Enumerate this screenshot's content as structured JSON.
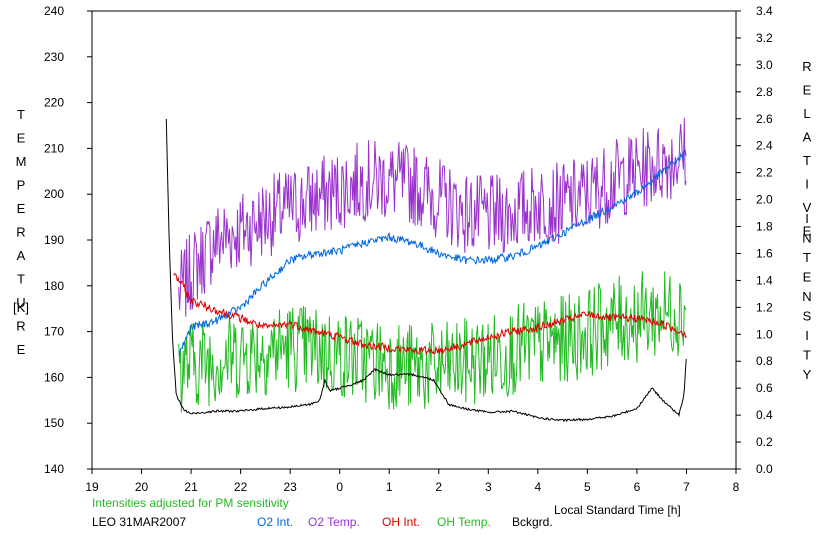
{
  "chart_data": {
    "type": "line",
    "xlabel": "Local Standard Time [h]",
    "ylabel_left": "TEMPERATURE",
    "ylabel_left_unit": "[K]",
    "ylabel_right": "RELATIVE INTENSITY",
    "x_ticks": [
      "19",
      "20",
      "21",
      "22",
      "23",
      "0",
      "1",
      "2",
      "3",
      "4",
      "5",
      "6",
      "7",
      "8"
    ],
    "x_range": [
      19,
      32
    ],
    "y_left_ticks": [
      "140",
      "150",
      "160",
      "170",
      "180",
      "190",
      "200",
      "210",
      "220",
      "230",
      "240"
    ],
    "y_left_range": [
      140,
      240
    ],
    "y_right_ticks": [
      "0.0",
      "0.2",
      "0.4",
      "0.6",
      "0.8",
      "1.0",
      "1.2",
      "1.4",
      "1.6",
      "1.8",
      "2.0",
      "2.2",
      "2.4",
      "2.6",
      "2.8",
      "3.0",
      "3.2",
      "3.4"
    ],
    "y_right_range": [
      0,
      3.4
    ],
    "grid": false,
    "note": "Intensities adjusted for PM sensitivity",
    "station_date": "LEO 31MAR2007",
    "legend": [
      {
        "label": "O2 Int.",
        "color": "#0066dd"
      },
      {
        "label": "O2 Temp.",
        "color": "#9933cc"
      },
      {
        "label": "OH Int.",
        "color": "#dd0000"
      },
      {
        "label": "OH Temp.",
        "color": "#22bb22"
      },
      {
        "label": "Bckgrd.",
        "color": "#000000"
      }
    ],
    "series": [
      {
        "key": "o2_temp",
        "axis": "left",
        "color": "#9933cc",
        "noise": 9,
        "x": [
          20.75,
          21.0,
          21.5,
          22.0,
          22.5,
          23.0,
          23.5,
          24.0,
          24.5,
          25.0,
          25.5,
          26.0,
          26.5,
          27.0,
          27.5,
          28.0,
          28.5,
          29.0,
          29.5,
          30.0,
          30.5,
          31.0
        ],
        "values": [
          178,
          183,
          190,
          192,
          195,
          197,
          199,
          201,
          203,
          203,
          202,
          199,
          196,
          195,
          196,
          198,
          198,
          200,
          203,
          205,
          207,
          209
        ]
      },
      {
        "key": "oh_temp",
        "axis": "left",
        "color": "#22bb22",
        "noise": 10,
        "x": [
          20.75,
          21.0,
          21.5,
          22.0,
          22.5,
          23.0,
          23.5,
          24.0,
          24.5,
          25.0,
          25.5,
          26.0,
          26.5,
          27.0,
          27.5,
          28.0,
          28.5,
          29.0,
          29.5,
          30.0,
          30.5,
          31.0
        ],
        "values": [
          162,
          163,
          164,
          165,
          166,
          167,
          166,
          165,
          164,
          163,
          162,
          162,
          163,
          164,
          166,
          167,
          168,
          170,
          172,
          173,
          174,
          175
        ]
      },
      {
        "key": "o2_int",
        "axis": "right",
        "color": "#0066dd",
        "noise": 0.03,
        "x": [
          20.75,
          21.0,
          21.5,
          22.0,
          22.5,
          23.0,
          23.5,
          24.0,
          24.5,
          25.0,
          25.5,
          26.0,
          26.5,
          27.0,
          27.5,
          28.0,
          28.5,
          29.0,
          29.5,
          30.0,
          30.5,
          31.0
        ],
        "values": [
          0.85,
          1.05,
          1.1,
          1.2,
          1.38,
          1.55,
          1.6,
          1.62,
          1.68,
          1.72,
          1.68,
          1.6,
          1.55,
          1.55,
          1.58,
          1.65,
          1.75,
          1.85,
          1.95,
          2.05,
          2.2,
          2.35
        ]
      },
      {
        "key": "oh_int",
        "axis": "right",
        "color": "#dd0000",
        "noise": 0.03,
        "x": [
          20.65,
          20.8,
          21.0,
          21.5,
          22.0,
          22.5,
          23.0,
          23.5,
          24.0,
          24.5,
          25.0,
          25.5,
          26.0,
          26.5,
          27.0,
          27.5,
          28.0,
          28.5,
          29.0,
          29.5,
          30.0,
          30.5,
          31.0
        ],
        "values": [
          1.45,
          1.38,
          1.25,
          1.18,
          1.12,
          1.05,
          1.08,
          1.02,
          0.98,
          0.92,
          0.9,
          0.88,
          0.88,
          0.92,
          0.98,
          1.02,
          1.05,
          1.1,
          1.15,
          1.12,
          1.12,
          1.08,
          1.0
        ]
      },
      {
        "key": "bckgrd",
        "axis": "right",
        "color": "#000000",
        "noise": 0.008,
        "x": [
          20.5,
          20.55,
          20.62,
          20.7,
          20.85,
          21.0,
          21.5,
          22.0,
          22.5,
          23.0,
          23.4,
          23.6,
          23.7,
          23.8,
          24.0,
          24.5,
          24.7,
          25.0,
          25.5,
          25.9,
          26.2,
          26.5,
          27.0,
          27.5,
          28.0,
          28.5,
          29.0,
          29.5,
          30.0,
          30.3,
          30.5,
          30.7,
          30.85,
          30.95,
          31.0
        ],
        "values": [
          2.6,
          1.8,
          1.0,
          0.55,
          0.44,
          0.41,
          0.43,
          0.43,
          0.45,
          0.46,
          0.48,
          0.51,
          0.66,
          0.58,
          0.6,
          0.66,
          0.74,
          0.7,
          0.7,
          0.66,
          0.48,
          0.45,
          0.42,
          0.43,
          0.38,
          0.36,
          0.37,
          0.39,
          0.45,
          0.6,
          0.52,
          0.45,
          0.4,
          0.55,
          0.85
        ]
      }
    ]
  }
}
